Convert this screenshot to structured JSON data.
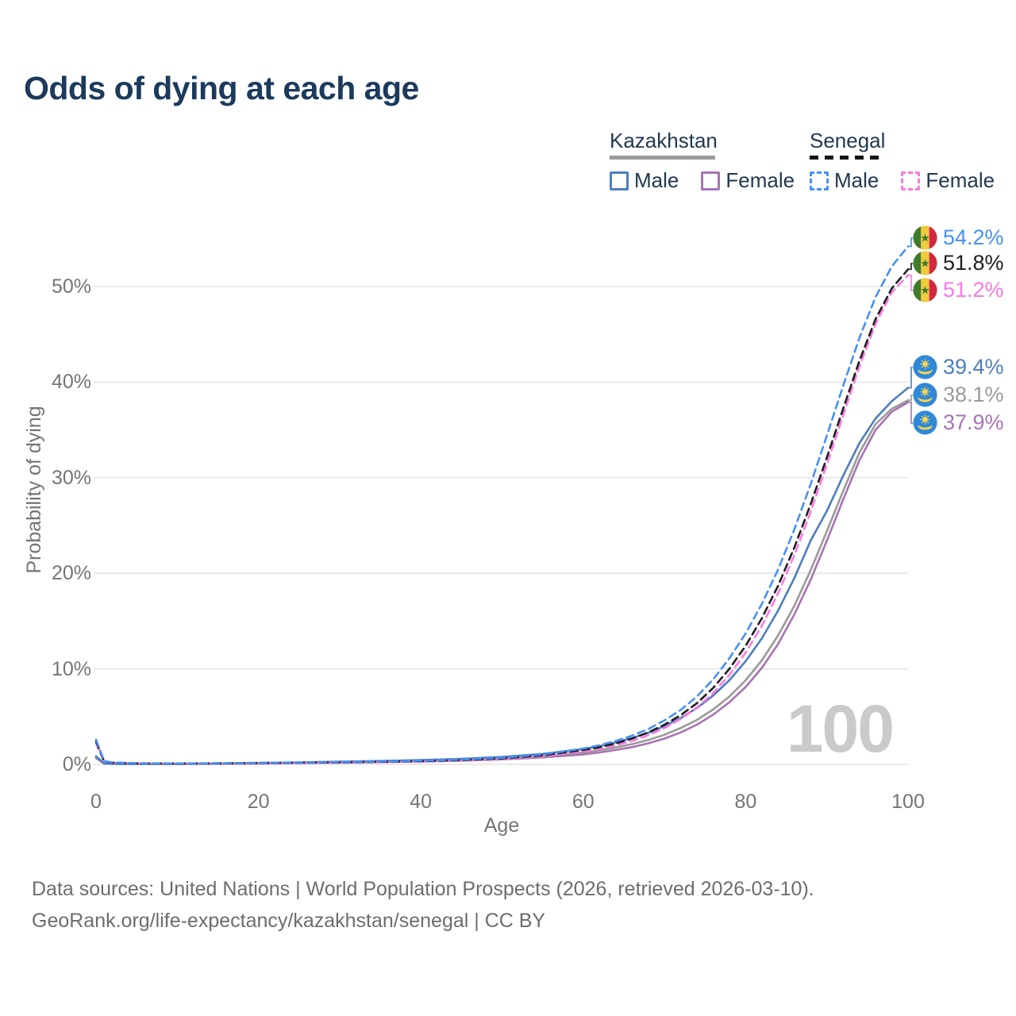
{
  "title": "Odds of dying at each age",
  "watermark": "100",
  "legend": {
    "groups": [
      {
        "country": "Kazakhstan",
        "line_style": "solid",
        "underline_color": "#9a9a9a",
        "items": [
          {
            "label": "Male",
            "color": "#4d7ebf"
          },
          {
            "label": "Female",
            "color": "#a873b3"
          }
        ]
      },
      {
        "country": "Senegal",
        "line_style": "dashed",
        "underline_color": "#161616",
        "items": [
          {
            "label": "Male",
            "color": "#4690f6"
          },
          {
            "label": "Female",
            "color": "#fb78e2"
          }
        ]
      }
    ]
  },
  "footer": {
    "line1": "Data sources: United Nations | World Population Prospects (2026, retrieved 2026-03-10).",
    "line2": "GeoRank.org/life-expectancy/kazakhstan/senegal | CC BY"
  },
  "chart_data": {
    "type": "line",
    "title": "Odds of dying at each age",
    "xlabel": "Age",
    "ylabel": "Probability of dying",
    "xlim": [
      0,
      100
    ],
    "ylim": [
      0,
      56
    ],
    "xticks": [
      0,
      20,
      40,
      60,
      80,
      100
    ],
    "yticks": [
      "0%",
      "10%",
      "20%",
      "30%",
      "40%",
      "50%"
    ],
    "ytick_values": [
      0,
      10,
      20,
      30,
      40,
      50
    ],
    "grid": "horizontal",
    "legend_position": "top-right",
    "x_unit": "years of age",
    "y_unit": "percent probability of dying at each age",
    "ages": [
      0,
      1,
      2,
      5,
      10,
      15,
      20,
      25,
      30,
      35,
      40,
      45,
      50,
      55,
      60,
      62,
      64,
      66,
      68,
      70,
      72,
      74,
      76,
      78,
      80,
      82,
      84,
      86,
      88,
      90,
      92,
      94,
      96,
      98,
      100
    ],
    "series": [
      {
        "name": "Senegal Male",
        "country": "Senegal",
        "sex": "Male",
        "color": "#4690f6",
        "dash": "dashed",
        "flag": "senegal",
        "end_label": "54.2%",
        "end_value": 54.2,
        "values": [
          2.6,
          0.35,
          0.2,
          0.12,
          0.1,
          0.12,
          0.16,
          0.2,
          0.25,
          0.3,
          0.38,
          0.5,
          0.7,
          1.05,
          1.65,
          2.0,
          2.45,
          3.0,
          3.7,
          4.6,
          5.7,
          7.1,
          8.9,
          11.1,
          13.7,
          16.8,
          20.4,
          24.6,
          29.3,
          34.4,
          39.6,
          44.6,
          48.9,
          52.1,
          54.2
        ]
      },
      {
        "name": "Senegal Both sexes",
        "country": "Senegal",
        "sex": "Both",
        "color": "#1f1f1f",
        "dash": "dashed",
        "flag": "senegal",
        "end_label": "51.8%",
        "end_value": 51.8,
        "values": [
          2.4,
          0.32,
          0.18,
          0.11,
          0.09,
          0.11,
          0.14,
          0.18,
          0.22,
          0.27,
          0.34,
          0.45,
          0.63,
          0.95,
          1.5,
          1.8,
          2.2,
          2.7,
          3.35,
          4.15,
          5.15,
          6.4,
          8.0,
          10.0,
          12.4,
          15.3,
          18.7,
          22.7,
          27.2,
          32.1,
          37.2,
          42.2,
          46.6,
          49.8,
          51.8
        ]
      },
      {
        "name": "Senegal Female",
        "country": "Senegal",
        "sex": "Female",
        "color": "#fb78e2",
        "dash": "dashed",
        "flag": "senegal",
        "end_label": "51.2%",
        "end_value": 51.2,
        "values": [
          2.2,
          0.3,
          0.17,
          0.1,
          0.08,
          0.1,
          0.12,
          0.15,
          0.19,
          0.24,
          0.3,
          0.4,
          0.57,
          0.86,
          1.35,
          1.63,
          2.0,
          2.45,
          3.05,
          3.8,
          4.75,
          5.95,
          7.45,
          9.35,
          11.7,
          14.5,
          17.9,
          21.9,
          26.4,
          31.4,
          36.5,
          41.6,
          46.1,
          49.4,
          51.2
        ]
      },
      {
        "name": "Kazakhstan Male",
        "country": "Kazakhstan",
        "sex": "Male",
        "color": "#4d7ebf",
        "dash": "solid",
        "flag": "kazakhstan",
        "end_label": "39.4%",
        "end_value": 39.4,
        "values": [
          0.85,
          0.1,
          0.07,
          0.05,
          0.05,
          0.09,
          0.15,
          0.21,
          0.28,
          0.36,
          0.45,
          0.58,
          0.78,
          1.1,
          1.6,
          1.9,
          2.3,
          2.75,
          3.3,
          4.0,
          4.85,
          5.9,
          7.2,
          8.8,
          10.8,
          13.2,
          16.1,
          19.5,
          23.4,
          26.5,
          30.2,
          33.6,
          36.2,
          38.0,
          39.4
        ]
      },
      {
        "name": "Kazakhstan Both sexes",
        "country": "Kazakhstan",
        "sex": "Both",
        "color": "#9a9a9a",
        "dash": "solid",
        "flag": "kazakhstan",
        "end_label": "38.1%",
        "end_value": 38.1,
        "values": [
          0.75,
          0.09,
          0.06,
          0.045,
          0.045,
          0.08,
          0.12,
          0.17,
          0.23,
          0.29,
          0.37,
          0.47,
          0.63,
          0.88,
          1.25,
          1.48,
          1.77,
          2.12,
          2.55,
          3.1,
          3.8,
          4.65,
          5.75,
          7.1,
          8.8,
          10.9,
          13.5,
          16.6,
          20.3,
          24.4,
          28.6,
          32.6,
          35.6,
          37.2,
          38.1
        ]
      },
      {
        "name": "Kazakhstan Female",
        "country": "Kazakhstan",
        "sex": "Female",
        "color": "#a873b3",
        "dash": "solid",
        "flag": "kazakhstan",
        "end_label": "37.9%",
        "end_value": 37.9,
        "values": [
          0.65,
          0.08,
          0.05,
          0.04,
          0.04,
          0.06,
          0.09,
          0.13,
          0.18,
          0.23,
          0.3,
          0.39,
          0.52,
          0.73,
          1.05,
          1.25,
          1.5,
          1.8,
          2.2,
          2.7,
          3.35,
          4.15,
          5.2,
          6.5,
          8.1,
          10.1,
          12.6,
          15.7,
          19.3,
          23.4,
          27.7,
          31.8,
          35.0,
          36.9,
          37.9
        ]
      }
    ]
  }
}
